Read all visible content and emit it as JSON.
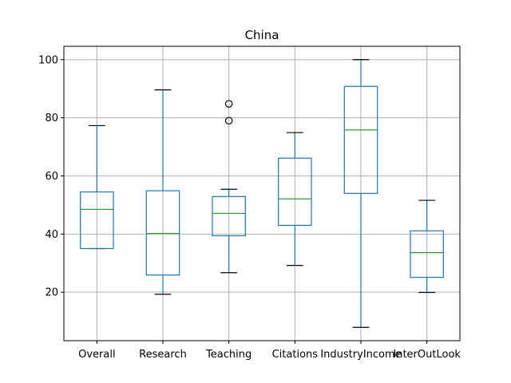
{
  "chart_data": {
    "type": "box",
    "title": "China",
    "xlabel": "",
    "ylabel": "",
    "categories": [
      "Overall",
      "Research",
      "Teaching",
      "Citations",
      "IndustryIncome",
      "InterOutLook"
    ],
    "boxes": [
      {
        "whisker_low": 35.0,
        "q1": 35.0,
        "median": 48.5,
        "q3": 54.5,
        "whisker_high": 77.3,
        "outliers": []
      },
      {
        "whisker_low": 19.3,
        "q1": 25.9,
        "median": 40.2,
        "q3": 54.9,
        "whisker_high": 89.6,
        "outliers": []
      },
      {
        "whisker_low": 26.7,
        "q1": 39.4,
        "median": 47.1,
        "q3": 52.9,
        "whisker_high": 55.4,
        "outliers": [
          79.0,
          84.8
        ]
      },
      {
        "whisker_low": 29.2,
        "q1": 43.0,
        "median": 52.1,
        "q3": 66.1,
        "whisker_high": 74.9,
        "outliers": []
      },
      {
        "whisker_low": 7.9,
        "q1": 54.0,
        "median": 75.8,
        "q3": 90.8,
        "whisker_high": 100.0,
        "outliers": []
      },
      {
        "whisker_low": 19.9,
        "q1": 25.1,
        "median": 33.6,
        "q3": 41.1,
        "whisker_high": 51.6,
        "outliers": []
      }
    ],
    "y_ticks": [
      20,
      40,
      60,
      80,
      100
    ],
    "ylim": [
      3.3,
      104.6
    ],
    "grid": true,
    "colors": {
      "box": "#1f77b4",
      "median": "#2ca02c",
      "cap": "#000000",
      "grid": "#b0b0b0",
      "outlier": "#000000"
    }
  }
}
